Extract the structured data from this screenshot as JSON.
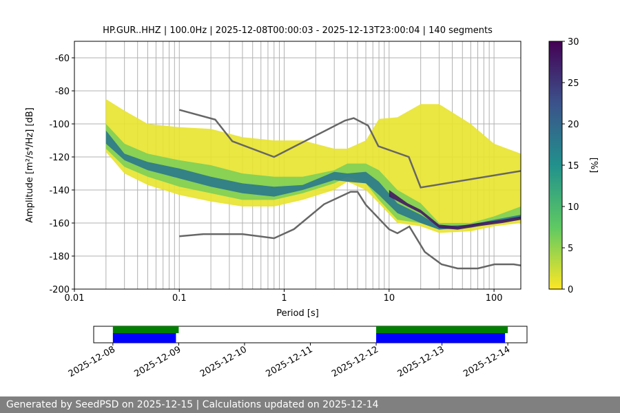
{
  "chart_data": {
    "type": "ppsd",
    "title": "HP.GUR..HHZ | 100.0Hz | 2025-12-08T00:00:03 - 2025-12-13T23:00:04 | 140 segments",
    "x_label": "Period [s]",
    "y_label": "Amplitude [m²/s⁴/Hz] [dB]",
    "log_x": true,
    "grid": true,
    "xlim": [
      0.01,
      180
    ],
    "ylim": [
      -200,
      -50
    ],
    "xticks": [
      0.01,
      0.1,
      1,
      10,
      100
    ],
    "xminor": [
      0.02,
      0.03,
      0.04,
      0.05,
      0.06,
      0.07,
      0.08,
      0.09,
      0.2,
      0.3,
      0.4,
      0.5,
      0.6,
      0.7,
      0.8,
      0.9,
      2,
      3,
      4,
      5,
      6,
      7,
      8,
      9,
      20,
      30,
      40,
      50,
      60,
      70,
      80,
      90
    ],
    "yticks": [
      -200,
      -180,
      -160,
      -140,
      -120,
      -100,
      -80,
      -60
    ],
    "bands": [
      {
        "percent": 1,
        "x": [
          0.02,
          0.03,
          0.05,
          0.1,
          0.2,
          0.4,
          0.8,
          1.5,
          3,
          4,
          6,
          8,
          12,
          20,
          30,
          60,
          100,
          180
        ],
        "low": [
          -117,
          -130,
          -137,
          -143,
          -147,
          -150,
          -150,
          -146,
          -140,
          -135,
          -140,
          -148,
          -160,
          -162,
          -166,
          -165,
          -162,
          -160
        ],
        "high": [
          -85,
          -92,
          -100,
          -102,
          -103,
          -108,
          -110,
          -110,
          -115,
          -115,
          -110,
          -97,
          -96,
          -88,
          -88,
          -100,
          -112,
          -118
        ]
      },
      {
        "percent": 6,
        "x": [
          0.02,
          0.03,
          0.05,
          0.1,
          0.2,
          0.4,
          0.8,
          1.5,
          3,
          4,
          6,
          8,
          12,
          20,
          30,
          60,
          100,
          180
        ],
        "low": [
          -115,
          -126,
          -132,
          -138,
          -142,
          -146,
          -146,
          -142,
          -136,
          -132,
          -136,
          -146,
          -158,
          -160,
          -164,
          -163,
          -160,
          -158
        ],
        "high": [
          -100,
          -112,
          -118,
          -122,
          -125,
          -130,
          -132,
          -132,
          -128,
          -124,
          -124,
          -128,
          -140,
          -148,
          -160,
          -160,
          -156,
          -150
        ]
      },
      {
        "percent": 18,
        "x": [
          0.02,
          0.03,
          0.05,
          0.1,
          0.2,
          0.4,
          0.8,
          1.5,
          3,
          4,
          6,
          8,
          12,
          20,
          30,
          60,
          100,
          180
        ],
        "low": [
          -112,
          -122,
          -128,
          -133,
          -138,
          -142,
          -144,
          -140,
          -134,
          -135,
          -136,
          -143,
          -154,
          -160,
          -164,
          -162,
          -159,
          -157
        ],
        "high": [
          -104,
          -118,
          -123,
          -127,
          -132,
          -136,
          -138,
          -137,
          -129,
          -130,
          -129,
          -135,
          -148,
          -155,
          -162,
          -161,
          -158,
          -155
        ]
      },
      {
        "percent": 28,
        "x": [
          10,
          15,
          20,
          30,
          45,
          70,
          120,
          180
        ],
        "low": [
          -144,
          -150,
          -154,
          -163,
          -164,
          -162,
          -160,
          -158
        ],
        "high": [
          -140,
          -148,
          -152,
          -161,
          -162,
          -160,
          -158,
          -156
        ]
      }
    ],
    "series": [
      {
        "color": "#666666",
        "x": [
          0.1,
          0.22,
          0.32,
          0.8,
          3.8,
          4.6,
          6.3,
          7.9,
          15.4,
          20,
          180
        ],
        "values": [
          -91.5,
          -97.4,
          -110.5,
          -120,
          -98,
          -96.5,
          -101,
          -113.5,
          -120,
          -138.5,
          -128.5
        ]
      },
      {
        "color": "#666666",
        "x": [
          0.1,
          0.17,
          0.4,
          0.8,
          1.24,
          2.4,
          4.3,
          5,
          6,
          10,
          12,
          15.6,
          21.9,
          31.6,
          45,
          70,
          101,
          154,
          180
        ],
        "values": [
          -168,
          -166.7,
          -166.7,
          -169.2,
          -163.7,
          -148.6,
          -141.1,
          -141.1,
          -149,
          -163.8,
          -166.2,
          -162.1,
          -177.5,
          -185,
          -187.5,
          -187.5,
          -185,
          -185,
          -185.7
        ]
      }
    ],
    "colorbar": {
      "label": "[%]",
      "lim": [
        0,
        30
      ],
      "ticks": [
        0,
        5,
        10,
        15,
        20,
        25,
        30
      ]
    },
    "timeline": {
      "xlim": [
        "2025-12-07T17:00",
        "2025-12-14T07:00"
      ],
      "xticks": [
        "2025-12-08",
        "2025-12-09",
        "2025-12-10",
        "2025-12-11",
        "2025-12-12",
        "2025-12-13",
        "2025-12-14"
      ],
      "series": [
        {
          "color": "#008000",
          "segments": [
            [
              "2025-12-08T00:00",
              "2025-12-09T00:00"
            ],
            [
              "2025-12-12T00:00",
              "2025-12-14T00:00"
            ]
          ]
        },
        {
          "color": "#0000ff",
          "segments": [
            [
              "2025-12-08T00:00",
              "2025-12-08T23:00"
            ],
            [
              "2025-12-12T00:00",
              "2025-12-13T23:00"
            ]
          ]
        }
      ]
    }
  },
  "footer": "Generated by SeedPSD on 2025-12-15 | Calculations updated on 2025-12-14"
}
